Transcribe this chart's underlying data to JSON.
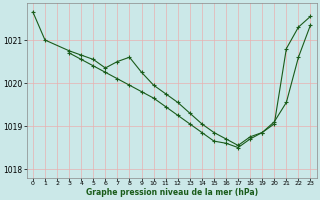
{
  "xlabel": "Graphe pression niveau de la mer (hPa)",
  "xlim": [
    -0.5,
    23.5
  ],
  "ylim": [
    1017.8,
    1021.85
  ],
  "yticks": [
    1018,
    1019,
    1020,
    1021
  ],
  "xticks": [
    0,
    1,
    2,
    3,
    4,
    5,
    6,
    7,
    8,
    9,
    10,
    11,
    12,
    13,
    14,
    15,
    16,
    17,
    18,
    19,
    20,
    21,
    22,
    23
  ],
  "background_color": "#cbe8e8",
  "grid_color": "#e8b0b0",
  "line_color": "#1a5c1a",
  "series1_x": [
    0,
    1,
    3,
    4,
    5,
    6,
    7,
    8,
    9,
    10,
    11,
    12,
    13,
    14,
    15,
    16,
    17,
    18,
    19,
    20,
    21,
    22,
    23
  ],
  "series1_y": [
    1021.65,
    1021.0,
    1020.75,
    1020.65,
    1020.55,
    1020.35,
    1020.5,
    1020.6,
    1020.25,
    1019.95,
    1019.75,
    1019.55,
    1019.3,
    1019.05,
    1018.85,
    1018.7,
    1018.55,
    1018.75,
    1018.85,
    1019.05,
    1020.8,
    1021.3,
    1021.55
  ],
  "series2_x": [
    3,
    4,
    5,
    6,
    7,
    8,
    9,
    10,
    11,
    12,
    13,
    14,
    15,
    16,
    17,
    18,
    19,
    20,
    21,
    22,
    23
  ],
  "series2_y": [
    1020.7,
    1020.55,
    1020.4,
    1020.25,
    1020.1,
    1019.95,
    1019.8,
    1019.65,
    1019.45,
    1019.25,
    1019.05,
    1018.85,
    1018.65,
    1018.6,
    1018.5,
    1018.7,
    1018.85,
    1019.1,
    1019.55,
    1020.6,
    1021.35
  ],
  "figwidth": 3.2,
  "figheight": 2.0,
  "dpi": 100
}
